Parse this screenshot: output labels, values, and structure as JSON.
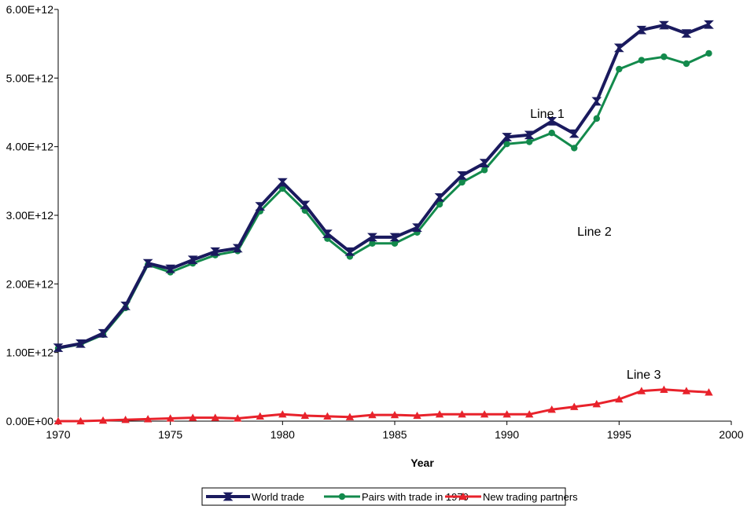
{
  "chart_data": {
    "type": "line",
    "xlabel": "Year",
    "ylabel": "",
    "xlim": [
      1970,
      2000
    ],
    "ylim": [
      0,
      6000000000000
    ],
    "x_ticks": [
      "1970",
      "1975",
      "1980",
      "1985",
      "1990",
      "1995",
      "2000"
    ],
    "y_ticks": [
      "0.00E+00",
      "1.00E+12",
      "2.00E+12",
      "3.00E+12",
      "4.00E+12",
      "5.00E+12",
      "6.00E+12"
    ],
    "grid": false,
    "legend_position": "bottom",
    "x": [
      1970,
      1971,
      1972,
      1973,
      1974,
      1975,
      1976,
      1977,
      1978,
      1979,
      1980,
      1981,
      1982,
      1983,
      1984,
      1985,
      1986,
      1987,
      1988,
      1989,
      1990,
      1991,
      1992,
      1993,
      1994,
      1995,
      1996,
      1997,
      1998,
      1999
    ],
    "series": [
      {
        "name": "World trade",
        "color": "#1a1a5e",
        "marker": "bowtie",
        "values": [
          1070000000000.0,
          1130000000000.0,
          1280000000000.0,
          1680000000000.0,
          2300000000000.0,
          2220000000000.0,
          2350000000000.0,
          2470000000000.0,
          2520000000000.0,
          3130000000000.0,
          3480000000000.0,
          3150000000000.0,
          2730000000000.0,
          2470000000000.0,
          2680000000000.0,
          2680000000000.0,
          2820000000000.0,
          3260000000000.0,
          3580000000000.0,
          3760000000000.0,
          4140000000000.0,
          4170000000000.0,
          4370000000000.0,
          4190000000000.0,
          4660000000000.0,
          5440000000000.0,
          5700000000000.0,
          5770000000000.0,
          5650000000000.0,
          5780000000000.0
        ]
      },
      {
        "name": "Pairs with trade in 1970",
        "color": "#138a4c",
        "marker": "circle",
        "values": [
          1060000000000.0,
          1120000000000.0,
          1260000000000.0,
          1650000000000.0,
          2280000000000.0,
          2170000000000.0,
          2300000000000.0,
          2420000000000.0,
          2480000000000.0,
          3060000000000.0,
          3390000000000.0,
          3070000000000.0,
          2660000000000.0,
          2400000000000.0,
          2590000000000.0,
          2590000000000.0,
          2750000000000.0,
          3160000000000.0,
          3480000000000.0,
          3660000000000.0,
          4040000000000.0,
          4070000000000.0,
          4200000000000.0,
          3980000000000.0,
          4410000000000.0,
          5130000000000.0,
          5260000000000.0,
          5310000000000.0,
          5210000000000.0,
          5360000000000.0
        ]
      },
      {
        "name": "New trading partners",
        "color": "#e8222b",
        "marker": "triangle",
        "values": [
          0.0,
          0.0,
          10000000000.0,
          20000000000.0,
          30000000000.0,
          40000000000.0,
          50000000000.0,
          50000000000.0,
          40000000000.0,
          70000000000.0,
          100000000000.0,
          80000000000.0,
          70000000000.0,
          60000000000.0,
          90000000000.0,
          90000000000.0,
          80000000000.0,
          100000000000.0,
          100000000000.0,
          100000000000.0,
          100000000000.0,
          100000000000.0,
          170000000000.0,
          210000000000.0,
          250000000000.0,
          320000000000.0,
          440000000000.0,
          460000000000.0,
          440000000000.0,
          420000000000.0
        ]
      }
    ],
    "annotations": [
      {
        "text": "Line 1",
        "x": 1991.8,
        "y": 4420000000000.0
      },
      {
        "text": "Line 2",
        "x": 1993.9,
        "y": 2700000000000.0
      },
      {
        "text": "Line 3",
        "x": 1996.1,
        "y": 620000000000.0
      }
    ]
  }
}
